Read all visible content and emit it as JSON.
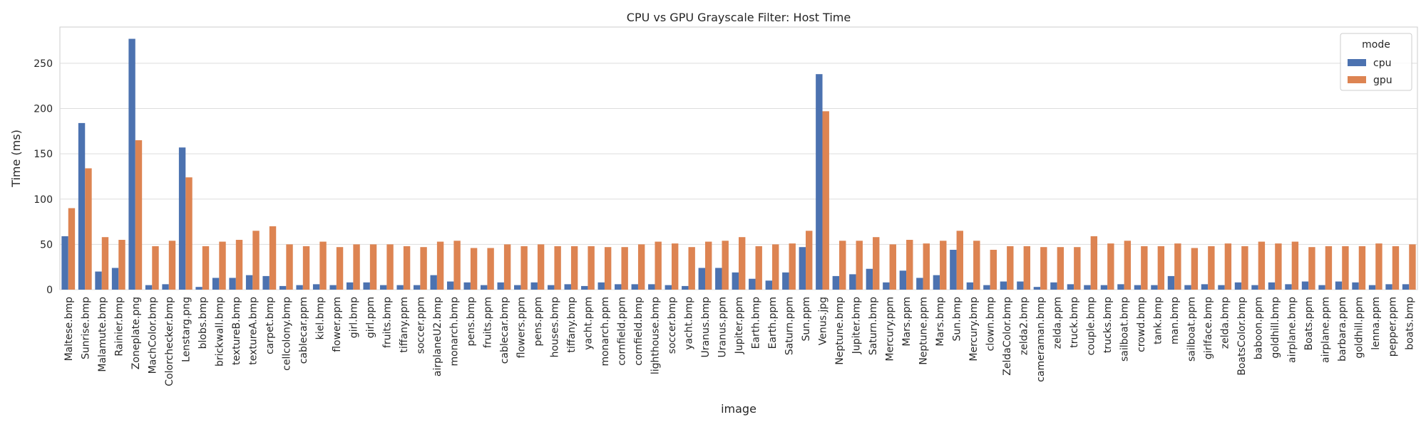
{
  "chart_data": {
    "type": "bar",
    "title": "CPU vs GPU Grayscale Filter: Host Time",
    "xlabel": "image",
    "ylabel": "Time (ms)",
    "ylim": [
      0,
      290
    ],
    "yticks": [
      0,
      50,
      100,
      150,
      200,
      250
    ],
    "grid": "y",
    "legend": {
      "title": "mode",
      "position": "top-right"
    },
    "categories": [
      "Maltese.bmp",
      "Sunrise.bmp",
      "Malamute.bmp",
      "Rainier.bmp",
      "Zoneplate.png",
      "MachColor.bmp",
      "Colorchecker.bmp",
      "Lenstarg.png",
      "blobs.bmp",
      "brickwall.bmp",
      "textureB.bmp",
      "textureA.bmp",
      "carpet.bmp",
      "cellcolony.bmp",
      "cablecar.ppm",
      "kiel.bmp",
      "flower.ppm",
      "girl.bmp",
      "girl.ppm",
      "fruits.bmp",
      "tiffany.ppm",
      "soccer.ppm",
      "airplaneU2.bmp",
      "monarch.bmp",
      "pens.bmp",
      "fruits.ppm",
      "cablecar.bmp",
      "flowers.ppm",
      "pens.ppm",
      "houses.bmp",
      "tiffany.bmp",
      "yacht.ppm",
      "monarch.ppm",
      "cornfield.ppm",
      "cornfield.bmp",
      "lighthouse.bmp",
      "soccer.bmp",
      "yacht.bmp",
      "Uranus.bmp",
      "Uranus.ppm",
      "Jupiter.ppm",
      "Earth.bmp",
      "Earth.ppm",
      "Saturn.ppm",
      "Sun.ppm",
      "Venus.jpg",
      "Neptune.bmp",
      "Jupiter.bmp",
      "Saturn.bmp",
      "Mercury.ppm",
      "Mars.ppm",
      "Neptune.ppm",
      "Mars.bmp",
      "Sun.bmp",
      "Mercury.bmp",
      "clown.bmp",
      "ZeldaColor.bmp",
      "zelda2.bmp",
      "cameraman.bmp",
      "zelda.ppm",
      "truck.bmp",
      "couple.bmp",
      "trucks.bmp",
      "sailboat.bmp",
      "crowd.bmp",
      "tank.bmp",
      "man.bmp",
      "sailboat.ppm",
      "girlface.bmp",
      "zelda.bmp",
      "BoatsColor.bmp",
      "baboon.ppm",
      "goldhill.bmp",
      "airplane.bmp",
      "Boats.ppm",
      "airplane.ppm",
      "barbara.ppm",
      "goldhill.ppm",
      "lenna.ppm",
      "pepper.ppm",
      "boats.bmp"
    ],
    "series": [
      {
        "name": "cpu",
        "color": "#4c72b0",
        "values": [
          59,
          184,
          20,
          24,
          277,
          5,
          6,
          157,
          3,
          13,
          13,
          16,
          15,
          4,
          5,
          6,
          5,
          8,
          8,
          5,
          5,
          5,
          16,
          9,
          8,
          5,
          8,
          5,
          8,
          5,
          6,
          4,
          8,
          6,
          6,
          6,
          5,
          4,
          24,
          24,
          19,
          12,
          10,
          19,
          47,
          238,
          15,
          17,
          23,
          8,
          21,
          13,
          16,
          44,
          8,
          5,
          9,
          9,
          3,
          8,
          6,
          5,
          5,
          6,
          5,
          5,
          15,
          5,
          6,
          5,
          8,
          5,
          8,
          6,
          9,
          5,
          9,
          8,
          5,
          6,
          6
        ]
      },
      {
        "name": "gpu",
        "color": "#dd8452",
        "values": [
          90,
          134,
          58,
          55,
          165,
          48,
          54,
          124,
          48,
          53,
          55,
          65,
          70,
          50,
          48,
          53,
          47,
          50,
          50,
          50,
          48,
          47,
          53,
          54,
          46,
          46,
          50,
          48,
          50,
          48,
          48,
          48,
          47,
          47,
          50,
          53,
          51,
          47,
          53,
          54,
          58,
          48,
          50,
          51,
          65,
          197,
          54,
          54,
          58,
          50,
          55,
          51,
          54,
          65,
          54,
          44,
          48,
          48,
          47,
          47,
          47,
          59,
          51,
          54,
          48,
          48,
          51,
          46,
          48,
          51,
          48,
          53,
          51,
          53,
          47,
          48,
          48,
          48,
          51,
          48,
          50
        ]
      }
    ]
  }
}
